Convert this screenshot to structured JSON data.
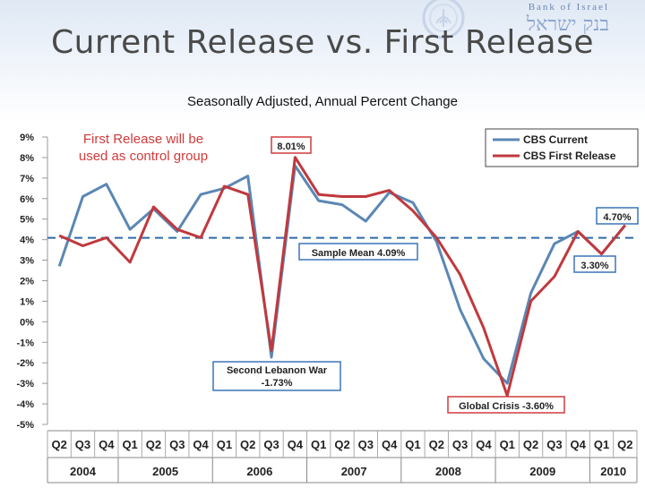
{
  "logo": {
    "name_en": "Bank of Israel",
    "name_he": "בנק ישראל"
  },
  "page": {
    "title": "Current Release vs. First Release",
    "subtitle": "Seasonally Adjusted, Annual Percent Change"
  },
  "note": {
    "line1": "First Release will be",
    "line2": "used as control group"
  },
  "colors": {
    "current": "#5b87b4",
    "first": "#c0393d",
    "mean": "#2e6aa8",
    "accent_red": "#d13b3b",
    "accent_blue": "#3a75b8",
    "note": "#d13b3b"
  },
  "chart_data": {
    "type": "line",
    "categories": [
      "Q2",
      "Q3",
      "Q4",
      "Q1",
      "Q2",
      "Q3",
      "Q4",
      "Q1",
      "Q2",
      "Q3",
      "Q4",
      "Q1",
      "Q2",
      "Q3",
      "Q4",
      "Q1",
      "Q2",
      "Q3",
      "Q4",
      "Q1",
      "Q2",
      "Q3",
      "Q4",
      "Q1",
      "Q2"
    ],
    "years": [
      {
        "label": "2004",
        "start": 0,
        "end": 2
      },
      {
        "label": "2005",
        "start": 3,
        "end": 6
      },
      {
        "label": "2006",
        "start": 7,
        "end": 10
      },
      {
        "label": "2007",
        "start": 11,
        "end": 14
      },
      {
        "label": "2008",
        "start": 15,
        "end": 18
      },
      {
        "label": "2009",
        "start": 19,
        "end": 22
      },
      {
        "label": "2010",
        "start": 23,
        "end": 24
      }
    ],
    "ylim": [
      -5,
      9
    ],
    "yticks": [
      "9%",
      "8%",
      "7%",
      "6%",
      "5%",
      "4%",
      "3%",
      "2%",
      "1%",
      "0%",
      "-1%",
      "-2%",
      "-3%",
      "-4%",
      "-5%"
    ],
    "series": [
      {
        "name": "CBS Current",
        "values": [
          2.7,
          6.1,
          6.7,
          4.5,
          5.5,
          4.4,
          6.2,
          6.5,
          7.1,
          -1.73,
          7.6,
          5.9,
          5.7,
          4.9,
          6.3,
          5.8,
          3.9,
          0.6,
          -1.8,
          -3.0,
          1.4,
          3.8,
          4.4,
          3.3,
          4.7
        ]
      },
      {
        "name": "CBS First Release",
        "values": [
          4.2,
          3.7,
          4.1,
          2.9,
          5.6,
          4.5,
          4.1,
          6.6,
          6.2,
          -1.4,
          8.01,
          6.2,
          6.1,
          6.1,
          6.4,
          5.4,
          4.1,
          2.3,
          -0.3,
          -3.6,
          1.0,
          2.2,
          4.4,
          3.3,
          4.7
        ]
      }
    ],
    "mean_line": {
      "value": 4.09,
      "label": "Sample Mean 4.09%"
    },
    "annotations": [
      {
        "id": "peak",
        "text": "8.01%",
        "index": 10,
        "value": 8.01
      },
      {
        "id": "end",
        "text": "4.70%",
        "index": 24,
        "value": 4.7
      },
      {
        "id": "low2010",
        "text": "3.30%",
        "index": 23,
        "value": 3.3
      },
      {
        "id": "lebanon",
        "line1": "Second Lebanon War",
        "line2": "-1.73%",
        "index": 9,
        "value": -1.73
      },
      {
        "id": "crisis",
        "text": "Global Crisis -3.60%",
        "index": 19,
        "value": -3.6
      }
    ],
    "legend": {
      "placement": "top-right"
    },
    "grid": false
  }
}
